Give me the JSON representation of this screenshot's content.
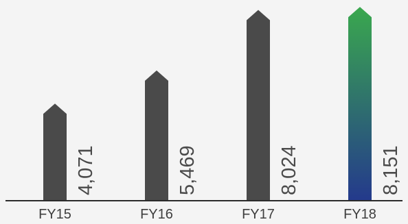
{
  "chart_data": {
    "type": "bar",
    "categories": [
      "FY15",
      "FY16",
      "FY17",
      "FY18"
    ],
    "values": [
      4071,
      5469,
      8024,
      8151
    ],
    "value_labels": [
      "4,071",
      "5,469",
      "8,024",
      "8,151"
    ],
    "ylim": [
      0,
      8300
    ],
    "grid": false,
    "legend": "none",
    "colors": {
      "bar": "#4a4a4a",
      "highlight_top": "#3aa84e",
      "highlight_bottom": "#243a8c",
      "baseline": "#2b2b2b",
      "background": "#f4f4f4"
    }
  }
}
